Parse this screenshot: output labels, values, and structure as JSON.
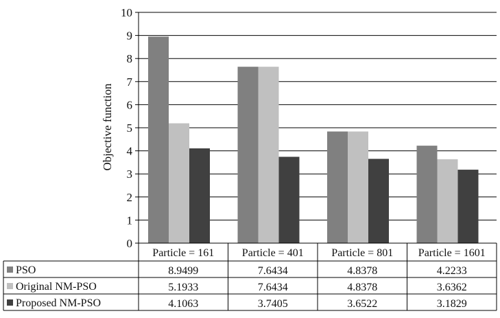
{
  "chart_data": {
    "type": "bar",
    "ylabel": "Objective function",
    "ylim": [
      0,
      10
    ],
    "yticks": [
      0,
      1,
      2,
      3,
      4,
      5,
      6,
      7,
      8,
      9,
      10
    ],
    "grid": true,
    "legend": "table-left",
    "categories": [
      "Particle = 161",
      "Particle = 401",
      "Particle = 801",
      "Particle = 1601"
    ],
    "series": [
      {
        "name": "PSO",
        "color": "#808080",
        "values": [
          8.9499,
          7.6434,
          4.8378,
          4.2233
        ],
        "labels": [
          "8.9499",
          "7.6434",
          "4.8378",
          "4.2233"
        ]
      },
      {
        "name": "Original NM-PSO",
        "color": "#c0c0c0",
        "values": [
          5.1933,
          7.6434,
          4.8378,
          3.6362
        ],
        "labels": [
          "5.1933",
          "7.6434",
          "4.8378",
          "3.6362"
        ]
      },
      {
        "name": "Proposed NM-PSO",
        "color": "#404040",
        "values": [
          4.1063,
          3.7405,
          3.6522,
          3.1829
        ],
        "labels": [
          "4.1063",
          "3.7405",
          "3.6522",
          "3.1829"
        ]
      }
    ]
  }
}
